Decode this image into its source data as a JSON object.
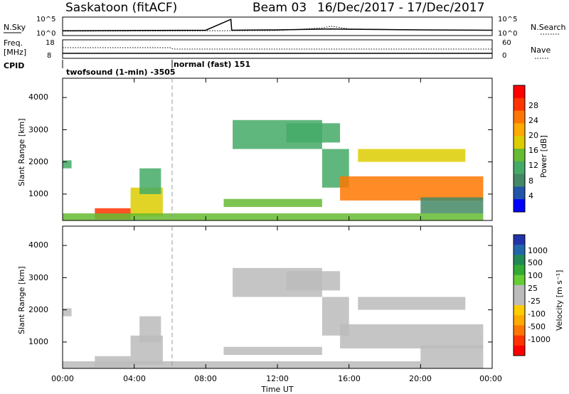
{
  "header": {
    "station": "Saskatoon (fitACF)",
    "beam": "Beam 03",
    "date_range": "16/Dec/2017 - 17/Dec/2017"
  },
  "strips": {
    "nsky_label": "N.Sky",
    "nsearch_label": "N.Search",
    "nsky_ticks": [
      "10^5",
      "10^0"
    ],
    "nsearch_ticks": [
      "10^5",
      "10^0"
    ],
    "freq_label": "Freq.",
    "freq_unit": "[MHz]",
    "freq_ticks": [
      "18",
      "8"
    ],
    "nave_label": "Nave",
    "nave_ticks": [
      "60",
      "0"
    ],
    "cpid_label": "CPID",
    "cpid_1": "twofsound (1-min) -3505",
    "cpid_2": "normal (fast) 151"
  },
  "panels": {
    "ylabel": "Slant Range [km]",
    "xlabel": "Time UT",
    "y_ticks": [
      "4000",
      "3000",
      "2000",
      "1000"
    ],
    "x_ticks": [
      "00:00",
      "04:00",
      "08:00",
      "12:00",
      "16:00",
      "20:00",
      "00:00"
    ]
  },
  "power_scale": {
    "label": "Power [dB]",
    "ticks": [
      "28",
      "24",
      "20",
      "16",
      "12",
      "8",
      "4"
    ],
    "colors": [
      "#ff0000",
      "#ff3300",
      "#ff7700",
      "#ffaa00",
      "#ddcc00",
      "#66bb33",
      "#44aa66",
      "#448866",
      "#2255aa",
      "#0000ff"
    ]
  },
  "velocity_scale": {
    "label": "Velocity [m s⁻¹]",
    "ticks": [
      "1000",
      "500",
      "100",
      "25",
      "-25",
      "-100",
      "-500",
      "-1000"
    ],
    "colors": [
      "#2233aa",
      "#2266aa",
      "#228855",
      "#33aa33",
      "#66cc33",
      "#bbbbbb",
      "#bbbbbb",
      "#ffcc00",
      "#ffaa00",
      "#ff7700",
      "#ff3300",
      "#ff0000"
    ]
  },
  "chart_data": {
    "type": "heatmap",
    "x_range_hours": [
      0,
      24
    ],
    "y_range_km": [
      180,
      4600
    ],
    "power_range_db": [
      0,
      30
    ],
    "velocity_range_ms": [
      -1000,
      1000
    ],
    "regions": [
      {
        "t0": 0.0,
        "t1": 0.5,
        "r0": 1800,
        "r1": 2050,
        "power": 10,
        "velocity": -20
      },
      {
        "t0": 1.8,
        "t1": 3.8,
        "r0": 220,
        "r1": 560,
        "power": 24,
        "velocity": -20
      },
      {
        "t0": 3.8,
        "t1": 5.6,
        "r0": 300,
        "r1": 1200,
        "power": 18,
        "velocity": -20
      },
      {
        "t0": 4.3,
        "t1": 5.5,
        "r0": 1000,
        "r1": 1800,
        "power": 12,
        "velocity": -20
      },
      {
        "t0": 0.0,
        "t1": 23.5,
        "r0": 180,
        "r1": 400,
        "power": 14,
        "velocity": 60
      },
      {
        "t0": 9.0,
        "t1": 14.5,
        "r0": 600,
        "r1": 850,
        "power": 14,
        "velocity": -60
      },
      {
        "t0": 9.5,
        "t1": 14.5,
        "r0": 2400,
        "r1": 3300,
        "power": 10,
        "velocity": -15
      },
      {
        "t0": 12.5,
        "t1": 15.5,
        "r0": 2600,
        "r1": 3200,
        "power": 12,
        "velocity": -15
      },
      {
        "t0": 14.5,
        "t1": 16.0,
        "r0": 1200,
        "r1": 2400,
        "power": 12,
        "velocity": -15
      },
      {
        "t0": 15.5,
        "t1": 23.5,
        "r0": 800,
        "r1": 1550,
        "power": 22,
        "velocity": -15
      },
      {
        "t0": 16.5,
        "t1": 22.5,
        "r0": 2000,
        "r1": 2400,
        "power": 16,
        "velocity": -160
      },
      {
        "t0": 20.0,
        "t1": 23.5,
        "r0": 400,
        "r1": 900,
        "power": 8,
        "velocity": 20
      }
    ],
    "nsky": {
      "x_hours": [
        0,
        4,
        8,
        9.4,
        9.45,
        12,
        15,
        16,
        20,
        24
      ],
      "log10_value": [
        1.3,
        1.4,
        1.5,
        5,
        1.5,
        1.6,
        1.9,
        1.8,
        1.6,
        1.5
      ]
    },
    "nsearch": {
      "x_hours": [
        0,
        8,
        12,
        14.5,
        15,
        16,
        20,
        24
      ],
      "log10_value": [
        1.2,
        1.3,
        1.4,
        2.2,
        2.8,
        1.9,
        1.6,
        1.5
      ]
    },
    "freq_mhz": {
      "x_hours": [
        0,
        24
      ],
      "value": [
        10.5,
        10.5
      ]
    },
    "nave": {
      "x_hours": [
        0,
        6,
        6.2,
        24
      ],
      "value": [
        35,
        35,
        30,
        30
      ]
    },
    "cpid_change_hour": 6
  }
}
